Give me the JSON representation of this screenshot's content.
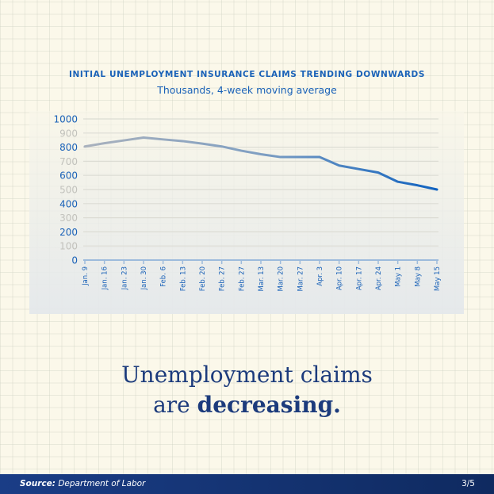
{
  "chart_data": {
    "type": "line",
    "title": "INITIAL UNEMPLOYMENT INSURANCE CLAIMS TRENDING DOWNWARDS",
    "subtitle": "Thousands, 4-week moving average",
    "categories": [
      "Jan. 9",
      "Jan. 16",
      "Jan. 23",
      "Jan. 30",
      "Feb. 6",
      "Feb. 13",
      "Feb. 20",
      "Feb. 27",
      "Feb. 27",
      "Mar. 13",
      "Mar. 20",
      "Mar. 27",
      "Apr. 3",
      "Apr. 10",
      "Apr. 17",
      "Apr. 24",
      "May 1",
      "May 8",
      "May 15"
    ],
    "values": [
      805,
      828,
      848,
      868,
      855,
      843,
      825,
      805,
      775,
      750,
      730,
      730,
      730,
      670,
      645,
      620,
      555,
      530,
      500
    ],
    "yticks": [
      "0",
      "100",
      "200",
      "300",
      "400",
      "500",
      "600",
      "700",
      "800",
      "900",
      "1000"
    ],
    "ylim": [
      0,
      1000
    ],
    "grid": true,
    "colors": {
      "line_start": "#a9b1bd",
      "line_mid": "#7f9fc2",
      "line_end": "#0f62c0",
      "tick_blue": "#1a62b8",
      "tick_grey": "#c2c2bc"
    }
  },
  "headline": {
    "line1": "Unemployment claims",
    "line2_prefix": "are ",
    "line2_bold": "decreasing."
  },
  "footer": {
    "source_label": "Source:",
    "source": " Department of Labor",
    "page": "3/5"
  }
}
